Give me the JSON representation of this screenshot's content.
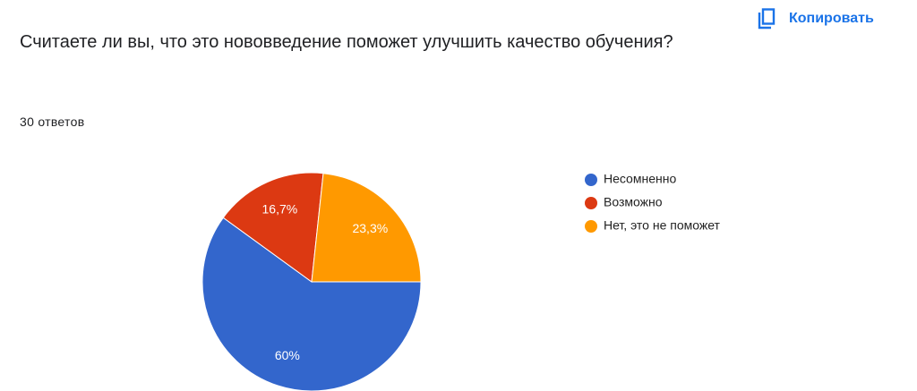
{
  "chart_data": {
    "type": "pie",
    "title": "Считаете ли вы, что это нововведение поможет улучшить качество обучения?",
    "subtitle": "30 ответов",
    "button": "Копировать",
    "categories": [
      "Несомненно",
      "Возможно",
      "Нет, это не поможет"
    ],
    "values": [
      60,
      16.7,
      23.3
    ],
    "value_labels": [
      "60%",
      "16,7%",
      "23,3%"
    ],
    "colors": [
      "#3366cc",
      "#dc3912",
      "#ff9900"
    ],
    "legend": "right"
  }
}
